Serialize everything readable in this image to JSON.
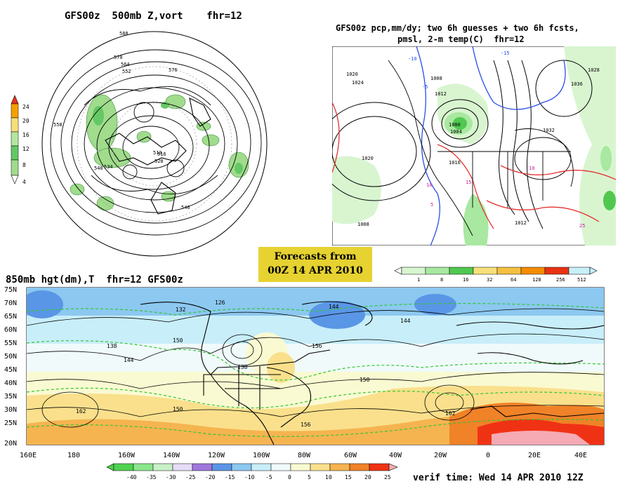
{
  "panels": {
    "top_left": {
      "title": "GFS00z  500mb Z,vort    fhr=12",
      "colorbar_labels": [
        "24",
        "20",
        "16",
        "12",
        "8",
        "4"
      ],
      "colorbar_colors": [
        "#e8321e",
        "#f4a000",
        "#f7e07a",
        "#b4e6a0",
        "#64c864",
        "#a0dc8c"
      ],
      "contour_labels": [
        "588",
        "576",
        "570",
        "564",
        "552",
        "540",
        "528",
        "516",
        "510",
        "558",
        "534",
        "546"
      ]
    },
    "top_right": {
      "title_line1": "GFS00z pcp,mm/dy; two 6h guesses + two 6h fcsts,",
      "title_line2": "pmsl, 2-m temp(C)  fhr=12",
      "isobar_labels": [
        "1020",
        "1024",
        "1028",
        "1000",
        "1004",
        "1008",
        "1012",
        "1016",
        "1032",
        "1036"
      ],
      "temp_labels": [
        "-15",
        "-10",
        "-5",
        "5",
        "10",
        "15",
        "25"
      ],
      "colorbar_labels": [
        "1",
        "8",
        "16",
        "32",
        "64",
        "128",
        "256",
        "512"
      ],
      "colorbar_colors": [
        "#d8f5d0",
        "#a8e8a0",
        "#50c850",
        "#f7e07a",
        "#f4c040",
        "#f48c00",
        "#e83214",
        "#c8f0f8"
      ]
    },
    "bottom": {
      "title": "850mb hgt(dm),T  fhr=12 GFS00z",
      "lat_labels": [
        "75N",
        "70N",
        "65N",
        "60N",
        "55N",
        "50N",
        "45N",
        "40N",
        "35N",
        "30N",
        "25N",
        "20N"
      ],
      "lon_labels": [
        "160E",
        "180",
        "160W",
        "140W",
        "120W",
        "100W",
        "80W",
        "60W",
        "40W",
        "20W",
        "0",
        "20E",
        "40E"
      ],
      "height_labels": [
        "132",
        "126",
        "144",
        "138",
        "150",
        "156",
        "162",
        "138",
        "144",
        "150",
        "156",
        "162",
        "144",
        "150"
      ],
      "colorbar_labels": [
        "-40",
        "-35",
        "-30",
        "-25",
        "-20",
        "-15",
        "-10",
        "-5",
        "0",
        "5",
        "10",
        "15",
        "20",
        "25"
      ],
      "colorbar_colors": [
        "#50d250",
        "#8ce68c",
        "#c8f0c8",
        "#e6dcf5",
        "#a078dc",
        "#5a96e6",
        "#8cc8f0",
        "#c8eefa",
        "#f0fafa",
        "#fafad2",
        "#fae08c",
        "#f5b450",
        "#f08228",
        "#f03214",
        "#f5aab4"
      ]
    }
  },
  "forecast_box": {
    "line1": "Forecasts from",
    "line2": "00Z 14 APR 2010"
  },
  "verif_time": "verif time: Wed 14 APR 2010 12Z"
}
